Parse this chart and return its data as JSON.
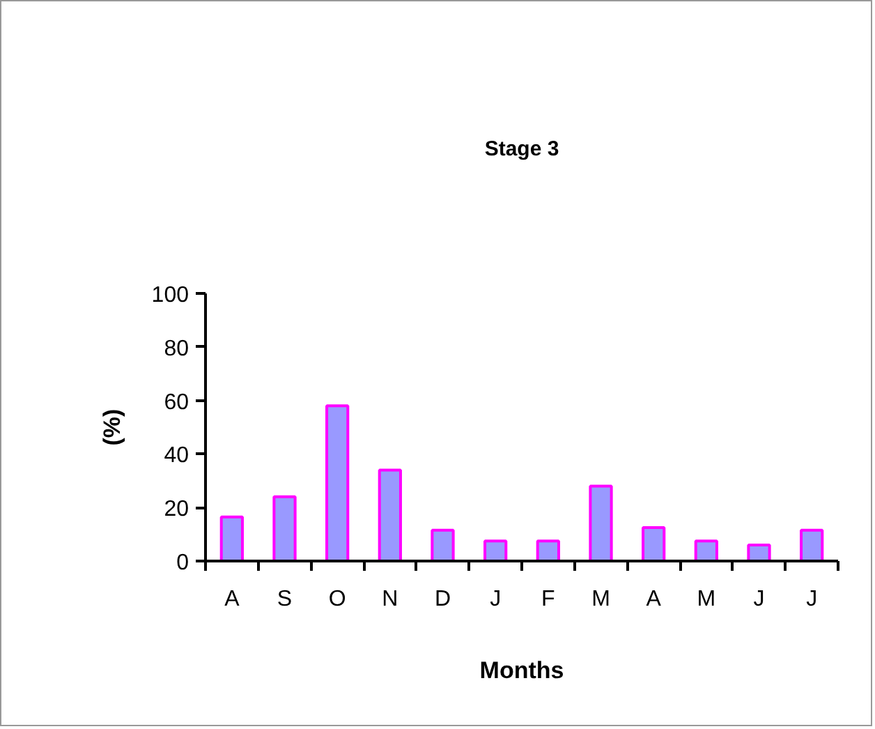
{
  "chart_data": {
    "type": "bar",
    "title": "Stage 3",
    "xlabel": "Months",
    "ylabel": "(%)",
    "categories": [
      "A",
      "S",
      "O",
      "N",
      "D",
      "J",
      "F",
      "M",
      "A",
      "M",
      "J",
      "J"
    ],
    "values": [
      16.5,
      24,
      58,
      34,
      11.5,
      7.5,
      7.5,
      28,
      12.5,
      7.5,
      6,
      11.5
    ],
    "color": "#9999ff",
    "ylim": [
      0,
      100
    ],
    "yticks": [
      0,
      20,
      40,
      60,
      80,
      100
    ],
    "grid": false
  }
}
